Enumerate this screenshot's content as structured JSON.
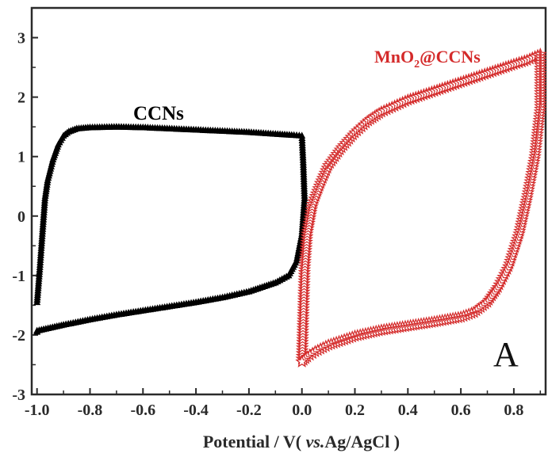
{
  "chart_data": {
    "type": "scatter",
    "panel_label": "A",
    "xlabel_parts": {
      "pre": "Potential / V( ",
      "italic": "vs.",
      "post": "Ag/AgCl  )"
    },
    "ylabel": "",
    "xlim": [
      -1.02,
      0.92
    ],
    "ylim": [
      -3,
      3.5
    ],
    "xticks": [
      -1.0,
      -0.8,
      -0.6,
      -0.4,
      -0.2,
      0.0,
      0.2,
      0.4,
      0.6,
      0.8
    ],
    "xtick_labels": [
      "-1.0",
      "-0.8",
      "-0.6",
      "-0.4",
      "-0.2",
      "0.0",
      "0.2",
      "0.4",
      "0.6",
      "0.8"
    ],
    "yticks": [
      -3,
      -2,
      -1,
      0,
      1,
      2,
      3
    ],
    "ytick_labels": [
      "-3",
      "-2",
      "-1",
      "0",
      "1",
      "2",
      "3"
    ],
    "grid": false,
    "series": [
      {
        "name": "CCNs",
        "marker": "triangle",
        "color": "#000000",
        "x": [
          -1.0,
          -0.99,
          -0.98,
          -0.97,
          -0.96,
          -0.94,
          -0.92,
          -0.9,
          -0.88,
          -0.85,
          -0.8,
          -0.7,
          -0.6,
          -0.5,
          -0.4,
          -0.3,
          -0.2,
          -0.1,
          -0.03,
          0.0,
          0.005,
          0.01,
          0.0,
          -0.02,
          -0.05,
          -0.1,
          -0.2,
          -0.3,
          -0.4,
          -0.5,
          -0.6,
          -0.7,
          -0.8,
          -0.9,
          -0.95,
          -1.0,
          -1.0
        ],
        "y": [
          -1.45,
          -0.9,
          -0.3,
          0.3,
          0.6,
          0.95,
          1.2,
          1.35,
          1.42,
          1.47,
          1.49,
          1.5,
          1.49,
          1.47,
          1.45,
          1.43,
          1.41,
          1.38,
          1.36,
          1.35,
          0.9,
          0.3,
          -0.3,
          -0.75,
          -1.0,
          -1.12,
          -1.27,
          -1.37,
          -1.45,
          -1.52,
          -1.59,
          -1.66,
          -1.74,
          -1.83,
          -1.88,
          -1.93,
          -1.95
        ]
      },
      {
        "name": "MnO₂@CCNs",
        "marker": "star",
        "color": "#d42a2a",
        "x": [
          0.0,
          0.005,
          0.01,
          0.02,
          0.04,
          0.07,
          0.1,
          0.15,
          0.2,
          0.25,
          0.3,
          0.4,
          0.5,
          0.6,
          0.7,
          0.8,
          0.85,
          0.9,
          0.9,
          0.88,
          0.85,
          0.82,
          0.78,
          0.74,
          0.7,
          0.65,
          0.6,
          0.5,
          0.4,
          0.3,
          0.2,
          0.1,
          0.05,
          0.02,
          0.0
        ],
        "y": [
          -2.45,
          -1.7,
          -0.9,
          -0.3,
          0.2,
          0.55,
          0.85,
          1.15,
          1.4,
          1.6,
          1.75,
          1.95,
          2.1,
          2.25,
          2.4,
          2.55,
          2.62,
          2.72,
          1.8,
          1.0,
          0.3,
          -0.3,
          -0.85,
          -1.2,
          -1.45,
          -1.62,
          -1.7,
          -1.78,
          -1.85,
          -1.92,
          -2.02,
          -2.17,
          -2.28,
          -2.37,
          -2.45
        ]
      }
    ],
    "labels": {
      "ccns": "CCNs",
      "mno2": {
        "pre": "MnO",
        "sub": "2",
        "post": "@CCNs"
      }
    },
    "colors": {
      "axis": "#2a2a2a",
      "ccns": "#000000",
      "mno2": "#d42a2a"
    }
  }
}
